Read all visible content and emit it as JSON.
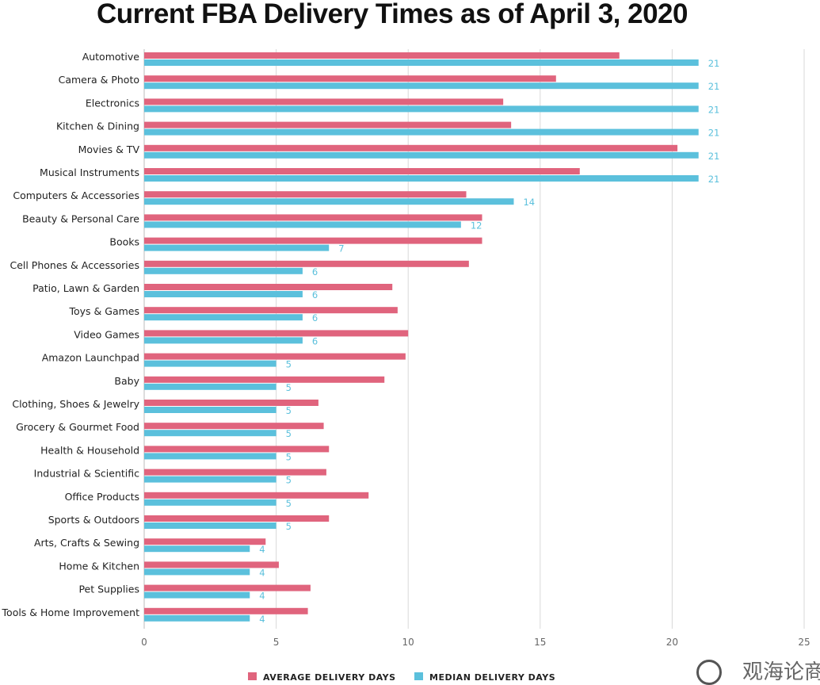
{
  "title": "Current FBA Delivery Times as of April 3, 2020",
  "colors": {
    "average": "#e0647d",
    "median": "#5bc0dc",
    "grid": "#d9d9d9"
  },
  "watermark": {
    "text": "观海论商"
  },
  "chart_data": {
    "type": "bar",
    "orientation": "horizontal",
    "categories": [
      "Automotive",
      "Camera & Photo",
      "Electronics",
      "Kitchen & Dining",
      "Movies & TV",
      "Musical Instruments",
      "Computers & Accessories",
      "Beauty & Personal Care",
      "Books",
      "Cell Phones & Accessories",
      "Patio, Lawn & Garden",
      "Toys & Games",
      "Video Games",
      "Amazon Launchpad",
      "Baby",
      "Clothing, Shoes & Jewelry",
      "Grocery & Gourmet Food",
      "Health & Household",
      "Industrial & Scientific",
      "Office Products",
      "Sports & Outdoors",
      "Arts, Crafts & Sewing",
      "Home & Kitchen",
      "Pet Supplies",
      "Tools & Home Improvement"
    ],
    "series": [
      {
        "name": "AVERAGE DELIVERY DAYS",
        "values": [
          18,
          15.6,
          13.6,
          13.9,
          20.2,
          16.5,
          12.2,
          12.8,
          12.8,
          12.3,
          9.4,
          9.6,
          10,
          9.9,
          9.1,
          6.6,
          6.8,
          7,
          6.9,
          8.5,
          7,
          4.6,
          5.1,
          6.3,
          6.2
        ],
        "show_labels": false
      },
      {
        "name": "MEDIAN DELIVERY DAYS",
        "values": [
          21,
          21,
          21,
          21,
          21,
          21,
          14,
          12,
          7,
          6,
          6,
          6,
          6,
          5,
          5,
          5,
          5,
          5,
          5,
          5,
          5,
          4,
          4,
          4,
          4
        ],
        "show_labels": true
      }
    ],
    "xlim": [
      0,
      25
    ],
    "xticks": [
      0,
      5,
      10,
      15,
      20,
      25
    ],
    "grid": true,
    "legend_position": "bottom-center",
    "xlabel": "",
    "ylabel": ""
  }
}
